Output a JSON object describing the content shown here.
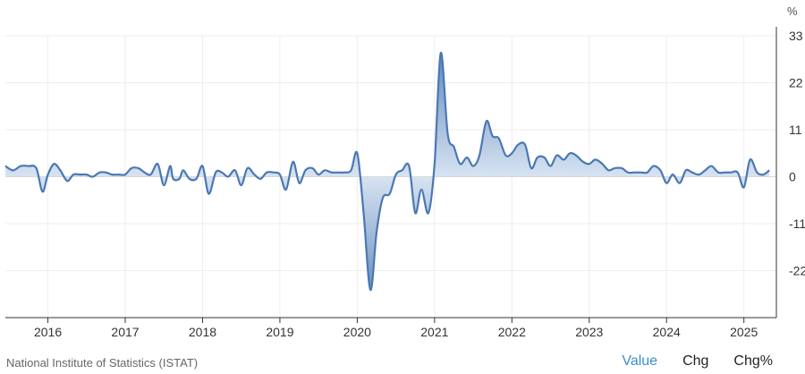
{
  "unit_symbol": "%",
  "footer": {
    "source": "National Institute of Statistics (ISTAT)",
    "tabs": [
      {
        "label": "Value",
        "active": true
      },
      {
        "label": "Chg",
        "active": false
      },
      {
        "label": "Chg%",
        "active": false
      }
    ]
  },
  "colors": {
    "line": "#4a78b4",
    "fill_top": "#3f6fae",
    "fill_bottom": "#dbe6f3",
    "grid": "#eeeeee",
    "axis": "#333333",
    "active_tab": "#3a8fd0"
  },
  "chart_data": {
    "type": "area",
    "title": "",
    "xlabel": "",
    "ylabel": "%",
    "ylim": [
      -33,
      33
    ],
    "xlim": [
      2015.45,
      2025.42
    ],
    "y_ticks": [
      33,
      22,
      11,
      0,
      -11,
      -22
    ],
    "x_ticks": [
      2016,
      2017,
      2018,
      2019,
      2020,
      2021,
      2022,
      2023,
      2024,
      2025
    ],
    "grid": true,
    "series": [
      {
        "name": "",
        "x": [
          2015.45,
          2015.55,
          2015.65,
          2015.75,
          2015.85,
          2015.93,
          2016.0,
          2016.08,
          2016.16,
          2016.25,
          2016.33,
          2016.42,
          2016.5,
          2016.58,
          2016.67,
          2016.75,
          2016.83,
          2016.92,
          2017.0,
          2017.08,
          2017.17,
          2017.25,
          2017.33,
          2017.42,
          2017.5,
          2017.58,
          2017.62,
          2017.7,
          2017.75,
          2017.83,
          2017.92,
          2018.0,
          2018.08,
          2018.17,
          2018.25,
          2018.33,
          2018.42,
          2018.5,
          2018.58,
          2018.67,
          2018.75,
          2018.83,
          2018.92,
          2019.0,
          2019.08,
          2019.17,
          2019.25,
          2019.33,
          2019.42,
          2019.5,
          2019.58,
          2019.67,
          2019.75,
          2019.83,
          2019.92,
          2020.0,
          2020.08,
          2020.17,
          2020.25,
          2020.33,
          2020.42,
          2020.5,
          2020.58,
          2020.67,
          2020.75,
          2020.83,
          2020.92,
          2021.0,
          2021.08,
          2021.17,
          2021.25,
          2021.33,
          2021.42,
          2021.5,
          2021.58,
          2021.67,
          2021.75,
          2021.83,
          2021.92,
          2022.0,
          2022.08,
          2022.17,
          2022.25,
          2022.33,
          2022.42,
          2022.5,
          2022.58,
          2022.67,
          2022.75,
          2022.83,
          2022.92,
          2023.0,
          2023.08,
          2023.17,
          2023.25,
          2023.33,
          2023.42,
          2023.5,
          2023.58,
          2023.67,
          2023.75,
          2023.83,
          2023.92,
          2024.0,
          2024.08,
          2024.17,
          2024.25,
          2024.33,
          2024.42,
          2024.5,
          2024.58,
          2024.67,
          2024.75,
          2024.83,
          2024.92,
          2025.0,
          2025.08,
          2025.17,
          2025.25,
          2025.33
        ],
        "values": [
          2.5,
          1.5,
          2.5,
          2.5,
          2.0,
          -3.5,
          0.5,
          3.0,
          1.5,
          -1.0,
          0.5,
          0.5,
          0.5,
          0.0,
          1.0,
          1.0,
          0.5,
          0.5,
          0.5,
          2.0,
          2.0,
          1.0,
          0.5,
          3.0,
          -2.0,
          2.5,
          -0.5,
          -0.5,
          1.5,
          -0.5,
          -0.5,
          2.5,
          -4.0,
          1.0,
          1.0,
          0.0,
          1.5,
          -2.0,
          2.0,
          0.5,
          -0.5,
          1.0,
          1.0,
          0.5,
          -3.0,
          3.5,
          -1.5,
          1.5,
          2.0,
          0.5,
          1.5,
          1.0,
          1.0,
          1.0,
          1.5,
          5.5,
          -8.0,
          -26.5,
          -13.0,
          -5.0,
          -4.0,
          0.5,
          1.5,
          2.5,
          -8.5,
          -3.0,
          -8.5,
          3.0,
          29.0,
          10.0,
          7.0,
          3.0,
          4.5,
          2.5,
          5.0,
          13.0,
          9.5,
          9.0,
          5.0,
          5.5,
          7.5,
          7.5,
          2.0,
          4.5,
          4.5,
          2.5,
          5.0,
          4.0,
          5.5,
          5.0,
          3.5,
          3.0,
          4.0,
          3.0,
          1.5,
          2.0,
          2.0,
          1.0,
          1.0,
          1.0,
          1.0,
          2.5,
          1.5,
          -1.5,
          0.5,
          -1.5,
          1.5,
          1.0,
          0.5,
          1.5,
          2.5,
          1.0,
          1.0,
          1.0,
          1.0,
          -2.5,
          4.0,
          1.0,
          0.5,
          1.5
        ]
      }
    ]
  }
}
